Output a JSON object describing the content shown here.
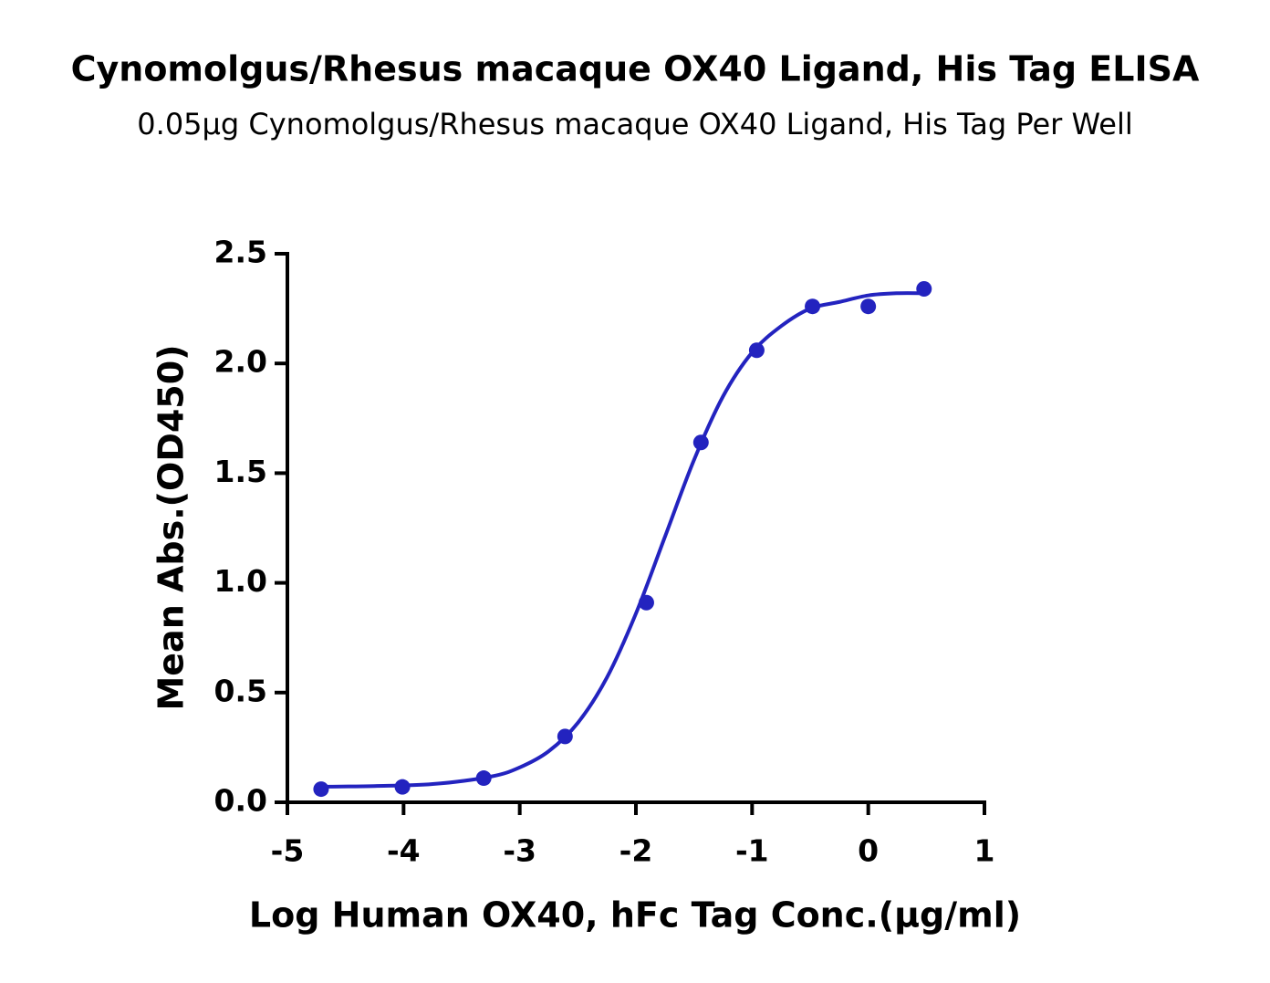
{
  "chart_data": {
    "type": "scatter",
    "title": "Cynomolgus/Rhesus macaque OX40 Ligand, His Tag ELISA",
    "subtitle": "0.05μg Cynomolgus/Rhesus macaque OX40 Ligand, His Tag Per Well",
    "x_label": "Log Human OX40, hFc Tag Conc.(μg/ml)",
    "y_label": "Mean Abs.(OD450)",
    "color": "#2323bf",
    "points": {
      "x": [
        -4.71,
        -4.01,
        -3.31,
        -2.61,
        -1.91,
        -1.44,
        -0.96,
        -0.48,
        0,
        0.48
      ],
      "y": [
        0.06,
        0.07,
        0.11,
        0.3,
        0.91,
        1.64,
        2.06,
        2.26,
        2.26,
        2.34
      ]
    },
    "fit": {
      "x": [
        -4.7,
        -4.25,
        -3.75,
        -3.25,
        -3.0,
        -2.75,
        -2.5,
        -2.25,
        -2.0,
        -1.75,
        -1.5,
        -1.25,
        -1.0,
        -0.75,
        -0.5,
        -0.25,
        0,
        0.25,
        0.48
      ],
      "y": [
        0.071,
        0.074,
        0.083,
        0.117,
        0.159,
        0.233,
        0.362,
        0.568,
        0.86,
        1.21,
        1.56,
        1.85,
        2.05,
        2.17,
        2.25,
        2.28,
        2.31,
        2.32,
        2.32
      ]
    },
    "xlim": [
      -5,
      1
    ],
    "xticks": [
      -5,
      -4,
      -3,
      -2,
      -1,
      0,
      1
    ],
    "ylim": [
      0,
      2.5
    ],
    "yticks": [
      {
        "value": 0,
        "label": "0.0"
      },
      0.5,
      {
        "value": 1,
        "label": "1.0"
      },
      1.5,
      {
        "value": 2,
        "label": "2.0"
      },
      2.5
    ]
  }
}
